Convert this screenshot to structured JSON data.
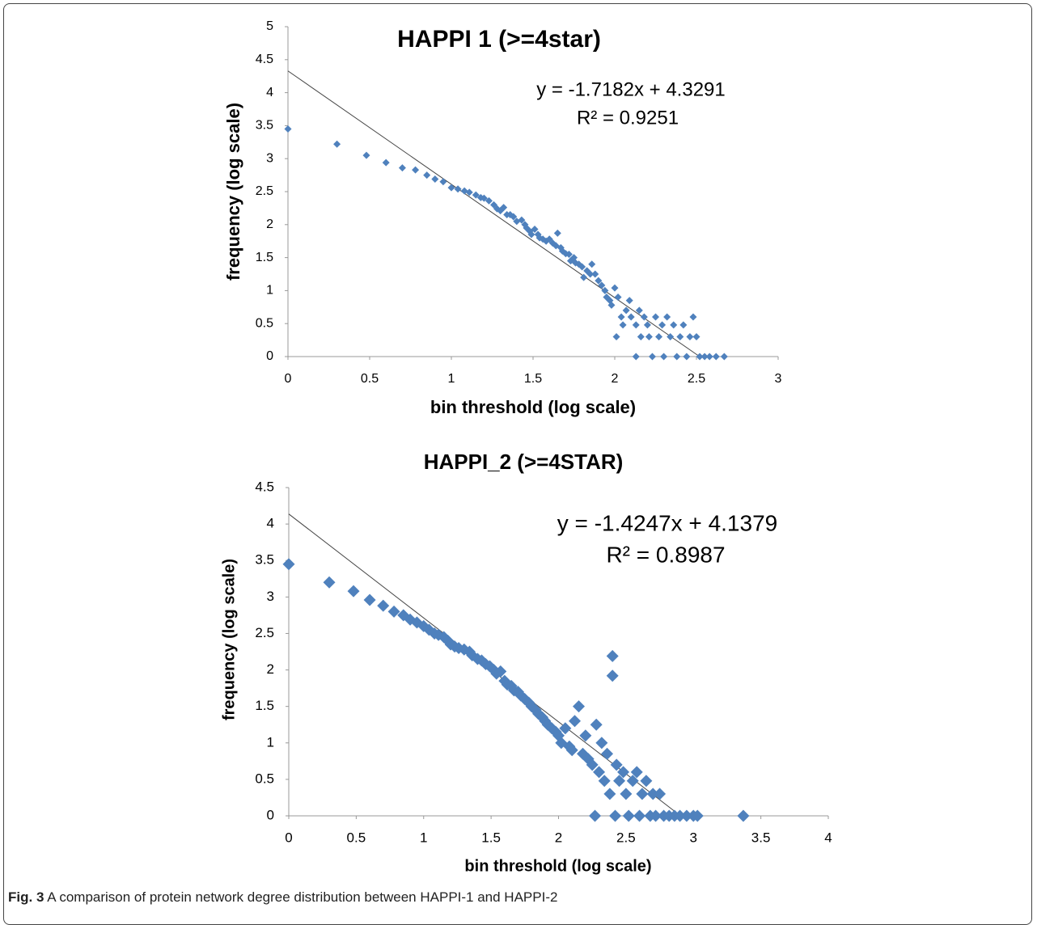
{
  "chart_data": [
    {
      "type": "scatter",
      "title": "HAPPI 1 (>=4star)",
      "x_label": "bin threshold (log scale)",
      "y_label": "frequency (log scale)",
      "annotations": [
        "y = -1.7182x + 4.3291",
        "R² = 0.9251"
      ],
      "trendline": {
        "slope": -1.7182,
        "intercept": 4.3291
      },
      "xlim": [
        0,
        3
      ],
      "xticks": [
        0,
        0.5,
        1,
        1.5,
        2,
        2.5,
        3
      ],
      "ylim": [
        0,
        5
      ],
      "yticks": [
        0,
        0.5,
        1,
        1.5,
        2,
        2.5,
        3,
        3.5,
        4,
        4.5,
        5
      ],
      "grid": false,
      "x": [
        0,
        0.3,
        0.48,
        0.6,
        0.7,
        0.78,
        0.85,
        0.9,
        0.95,
        1.0,
        1.04,
        1.08,
        1.11,
        1.15,
        1.18,
        1.2,
        1.23,
        1.26,
        1.28,
        1.3,
        1.32,
        1.34,
        1.36,
        1.38,
        1.4,
        1.43,
        1.45,
        1.46,
        1.48,
        1.49,
        1.51,
        1.53,
        1.54,
        1.56,
        1.58,
        1.6,
        1.62,
        1.64,
        1.65,
        1.67,
        1.68,
        1.7,
        1.72,
        1.73,
        1.75,
        1.76,
        1.78,
        1.8,
        1.81,
        1.83,
        1.85,
        1.86,
        1.88,
        1.9,
        1.92,
        1.94,
        1.95,
        1.97,
        1.98,
        2.0,
        2.01,
        2.02,
        2.04,
        2.05,
        2.07,
        2.09,
        2.1,
        2.13,
        2.13,
        2.15,
        2.16,
        2.18,
        2.2,
        2.21,
        2.23,
        2.25,
        2.27,
        2.29,
        2.3,
        2.32,
        2.34,
        2.36,
        2.38,
        2.4,
        2.42,
        2.44,
        2.46,
        2.48,
        2.5,
        2.52,
        2.55,
        2.58,
        2.62,
        2.67
      ],
      "series": [
        {
          "color": "#4f81bd",
          "values": [
            3.45,
            3.22,
            3.05,
            2.94,
            2.86,
            2.83,
            2.75,
            2.69,
            2.65,
            2.56,
            2.54,
            2.51,
            2.49,
            2.45,
            2.41,
            2.4,
            2.36,
            2.3,
            2.24,
            2.21,
            2.26,
            2.15,
            2.15,
            2.12,
            2.05,
            2.07,
            2.0,
            1.95,
            1.9,
            1.85,
            1.93,
            1.85,
            1.8,
            1.78,
            1.75,
            1.78,
            1.72,
            1.68,
            1.87,
            1.65,
            1.6,
            1.56,
            1.55,
            1.45,
            1.5,
            1.42,
            1.4,
            1.36,
            1.2,
            1.3,
            1.25,
            1.4,
            1.25,
            1.15,
            1.08,
            1.0,
            0.9,
            0.85,
            0.78,
            1.04,
            0.3,
            0.9,
            0.6,
            0.48,
            0.7,
            0.85,
            0.6,
            0,
            0.48,
            0.7,
            0.3,
            0.6,
            0.48,
            0.3,
            0,
            0.6,
            0.3,
            0.48,
            0,
            0.6,
            0.3,
            0.48,
            0,
            0.3,
            0.48,
            0,
            0.3,
            0.6,
            0.3,
            0,
            0,
            0,
            0,
            0
          ]
        }
      ]
    },
    {
      "type": "scatter",
      "title": "HAPPI_2 (>=4STAR)",
      "x_label": "bin threshold (log scale)",
      "y_label": "frequency (log scale)",
      "annotations": [
        "y = -1.4247x + 4.1379",
        "R² = 0.8987"
      ],
      "trendline": {
        "slope": -1.4247,
        "intercept": 4.1379
      },
      "xlim": [
        0,
        4
      ],
      "xticks": [
        0,
        0.5,
        1,
        1.5,
        2,
        2.5,
        3,
        3.5,
        4
      ],
      "ylim": [
        0,
        4.5
      ],
      "yticks": [
        0,
        0.5,
        1,
        1.5,
        2,
        2.5,
        3,
        3.5,
        4,
        4.5
      ],
      "grid": false,
      "x": [
        0,
        0.3,
        0.48,
        0.6,
        0.7,
        0.78,
        0.85,
        0.9,
        0.95,
        1.0,
        1.04,
        1.08,
        1.11,
        1.15,
        1.18,
        1.2,
        1.23,
        1.26,
        1.3,
        1.34,
        1.36,
        1.4,
        1.43,
        1.46,
        1.49,
        1.52,
        1.54,
        1.57,
        1.6,
        1.62,
        1.65,
        1.67,
        1.7,
        1.72,
        1.75,
        1.78,
        1.8,
        1.83,
        1.85,
        1.88,
        1.9,
        1.92,
        1.95,
        1.98,
        2.0,
        2.02,
        2.05,
        2.08,
        2.1,
        2.12,
        2.15,
        2.18,
        2.2,
        2.22,
        2.25,
        2.27,
        2.28,
        2.3,
        2.32,
        2.34,
        2.36,
        2.38,
        2.4,
        2.4,
        2.42,
        2.43,
        2.45,
        2.48,
        2.5,
        2.52,
        2.55,
        2.58,
        2.6,
        2.62,
        2.65,
        2.68,
        2.7,
        2.72,
        2.75,
        2.78,
        2.82,
        2.86,
        2.9,
        2.95,
        3.0,
        3.03,
        3.37
      ],
      "series": [
        {
          "color": "#4f81bd",
          "values": [
            3.45,
            3.2,
            3.08,
            2.96,
            2.88,
            2.8,
            2.75,
            2.69,
            2.65,
            2.6,
            2.55,
            2.5,
            2.48,
            2.45,
            2.4,
            2.35,
            2.32,
            2.3,
            2.28,
            2.25,
            2.2,
            2.15,
            2.13,
            2.08,
            2.05,
            2.0,
            1.95,
            1.98,
            1.85,
            1.8,
            1.78,
            1.72,
            1.7,
            1.65,
            1.6,
            1.55,
            1.5,
            1.45,
            1.4,
            1.35,
            1.3,
            1.25,
            1.2,
            1.15,
            1.1,
            1.0,
            1.2,
            0.95,
            0.9,
            1.3,
            1.5,
            0.85,
            1.1,
            0.78,
            0.7,
            0,
            1.25,
            0.6,
            1.0,
            0.48,
            0.85,
            0.3,
            2.19,
            1.92,
            0,
            0.7,
            0.48,
            0.6,
            0.3,
            0,
            0.48,
            0.6,
            0,
            0.3,
            0.48,
            0,
            0.3,
            0,
            0.3,
            0,
            0,
            0,
            0,
            0,
            0,
            0,
            0
          ]
        }
      ]
    }
  ],
  "caption": {
    "label": "Fig. 3",
    "text": "A comparison of protein network degree distribution between HAPPI-1 and HAPPI-2"
  }
}
